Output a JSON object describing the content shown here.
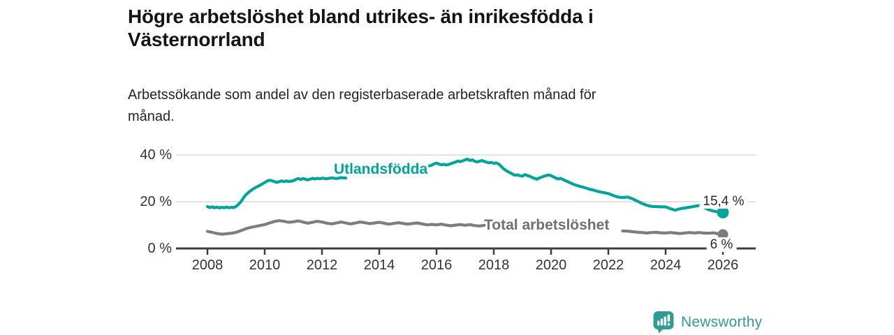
{
  "header": {
    "title": "Högre arbetslöshet bland utrikes- än inrikesfödda i\nVästernorrland",
    "subtitle": "Arbetssökande som andel av den registerbaserade arbetskraften månad för\nmånad."
  },
  "footer": {
    "brand": "Newsworthy",
    "logo_icon": "bar-chart-speech-bubble-icon"
  },
  "colors": {
    "teal_line": "#00a49b",
    "gray_line": "#7c7c81",
    "gray_label": "#6f6f74",
    "axis": "#3d3d3d",
    "gridline": "#d8d8d8",
    "logo_teal": "#2f9c95"
  },
  "chart_data": {
    "type": "line",
    "title": "Högre arbetslöshet bland utrikes- än inrikesfödda i Västernorrland",
    "subtitle": "Arbetssökande som andel av den registerbaserade arbetskraften månad för månad.",
    "unit": "%",
    "grid": "horizontal",
    "legend_position": "inline-labels",
    "xlim": [
      2007.4,
      2027.1
    ],
    "ylim": [
      0,
      44
    ],
    "y_ticks": [
      {
        "value": 0,
        "label": "0 %"
      },
      {
        "value": 20,
        "label": "20 %"
      },
      {
        "value": 40,
        "label": "40 %"
      }
    ],
    "x_ticks": [
      {
        "year": 2008,
        "label": "2008"
      },
      {
        "year": 2010,
        "label": "2010"
      },
      {
        "year": 2012,
        "label": "2012"
      },
      {
        "year": 2014,
        "label": "2014"
      },
      {
        "year": 2016,
        "label": "2016"
      },
      {
        "year": 2018,
        "label": "2018"
      },
      {
        "year": 2020,
        "label": "2020"
      },
      {
        "year": 2022,
        "label": "2022"
      },
      {
        "year": 2024,
        "label": "2024"
      },
      {
        "year": 2026,
        "label": "2026"
      }
    ],
    "series": [
      {
        "name": "Utlandsfödda",
        "color": "#00a49b",
        "end_value": 15.4,
        "end_label": "15,4 %",
        "points": [
          [
            2008.0,
            17.9
          ],
          [
            2008.08,
            17.5
          ],
          [
            2008.17,
            17.8
          ],
          [
            2008.25,
            17.4
          ],
          [
            2008.33,
            17.7
          ],
          [
            2008.42,
            17.3
          ],
          [
            2008.5,
            17.6
          ],
          [
            2008.58,
            17.4
          ],
          [
            2008.67,
            17.7
          ],
          [
            2008.75,
            17.4
          ],
          [
            2008.83,
            17.6
          ],
          [
            2008.92,
            17.5
          ],
          [
            2009.0,
            18.0
          ],
          [
            2009.08,
            18.8
          ],
          [
            2009.17,
            20.0
          ],
          [
            2009.25,
            21.5
          ],
          [
            2009.33,
            22.8
          ],
          [
            2009.42,
            23.8
          ],
          [
            2009.5,
            24.6
          ],
          [
            2009.58,
            25.3
          ],
          [
            2009.67,
            26.0
          ],
          [
            2009.75,
            26.5
          ],
          [
            2009.83,
            27.0
          ],
          [
            2009.92,
            27.6
          ],
          [
            2010.0,
            28.2
          ],
          [
            2010.08,
            28.8
          ],
          [
            2010.17,
            29.2
          ],
          [
            2010.25,
            29.0
          ],
          [
            2010.33,
            28.6
          ],
          [
            2010.42,
            28.3
          ],
          [
            2010.5,
            28.5
          ],
          [
            2010.58,
            28.9
          ],
          [
            2010.67,
            28.6
          ],
          [
            2010.75,
            28.9
          ],
          [
            2010.83,
            28.6
          ],
          [
            2010.92,
            28.8
          ],
          [
            2011.0,
            29.0
          ],
          [
            2011.08,
            29.5
          ],
          [
            2011.17,
            29.9
          ],
          [
            2011.25,
            29.5
          ],
          [
            2011.33,
            29.9
          ],
          [
            2011.42,
            29.6
          ],
          [
            2011.5,
            29.3
          ],
          [
            2011.58,
            29.6
          ],
          [
            2011.67,
            30.0
          ],
          [
            2011.75,
            29.7
          ],
          [
            2011.83,
            30.0
          ],
          [
            2011.92,
            29.8
          ],
          [
            2012.0,
            30.1
          ],
          [
            2012.17,
            29.8
          ],
          [
            2012.33,
            30.2
          ],
          [
            2012.5,
            29.9
          ],
          [
            2012.67,
            30.3
          ],
          [
            2012.83,
            30.1
          ],
          [
            2013.0,
            30.5
          ],
          [
            2013.25,
            30.8
          ],
          [
            2013.5,
            31.2
          ],
          [
            2013.75,
            31.7
          ],
          [
            2014.0,
            32.2
          ],
          [
            2014.25,
            32.6
          ],
          [
            2014.5,
            33.1
          ],
          [
            2014.75,
            33.6
          ],
          [
            2015.0,
            34.1
          ],
          [
            2015.25,
            34.5
          ],
          [
            2015.5,
            34.9
          ],
          [
            2015.75,
            35.3
          ],
          [
            2015.83,
            35.6
          ],
          [
            2015.92,
            36.2
          ],
          [
            2016.0,
            36.5
          ],
          [
            2016.08,
            36.1
          ],
          [
            2016.17,
            35.8
          ],
          [
            2016.25,
            36.0
          ],
          [
            2016.33,
            35.7
          ],
          [
            2016.42,
            35.9
          ],
          [
            2016.5,
            36.3
          ],
          [
            2016.58,
            36.6
          ],
          [
            2016.67,
            37.0
          ],
          [
            2016.75,
            37.4
          ],
          [
            2016.83,
            37.1
          ],
          [
            2016.92,
            37.5
          ],
          [
            2017.0,
            37.9
          ],
          [
            2017.08,
            38.2
          ],
          [
            2017.17,
            37.6
          ],
          [
            2017.25,
            37.9
          ],
          [
            2017.33,
            37.3
          ],
          [
            2017.42,
            37.0
          ],
          [
            2017.5,
            37.3
          ],
          [
            2017.58,
            37.6
          ],
          [
            2017.67,
            37.2
          ],
          [
            2017.75,
            36.9
          ],
          [
            2017.83,
            36.6
          ],
          [
            2017.92,
            36.8
          ],
          [
            2018.0,
            36.4
          ],
          [
            2018.08,
            36.6
          ],
          [
            2018.17,
            36.1
          ],
          [
            2018.25,
            35.2
          ],
          [
            2018.33,
            34.2
          ],
          [
            2018.42,
            33.4
          ],
          [
            2018.5,
            32.8
          ],
          [
            2018.58,
            32.3
          ],
          [
            2018.67,
            31.7
          ],
          [
            2018.75,
            31.3
          ],
          [
            2018.83,
            31.5
          ],
          [
            2018.92,
            31.1
          ],
          [
            2019.0,
            30.9
          ],
          [
            2019.08,
            31.6
          ],
          [
            2019.17,
            31.2
          ],
          [
            2019.25,
            30.9
          ],
          [
            2019.33,
            30.4
          ],
          [
            2019.42,
            30.0
          ],
          [
            2019.5,
            29.6
          ],
          [
            2019.58,
            30.1
          ],
          [
            2019.67,
            30.5
          ],
          [
            2019.75,
            30.9
          ],
          [
            2019.83,
            31.2
          ],
          [
            2019.92,
            31.4
          ],
          [
            2020.0,
            31.2
          ],
          [
            2020.08,
            30.6
          ],
          [
            2020.17,
            30.1
          ],
          [
            2020.25,
            29.7
          ],
          [
            2020.33,
            30.0
          ],
          [
            2020.42,
            29.5
          ],
          [
            2020.5,
            29.0
          ],
          [
            2020.58,
            28.6
          ],
          [
            2020.67,
            28.1
          ],
          [
            2020.75,
            27.6
          ],
          [
            2020.83,
            27.2
          ],
          [
            2020.92,
            26.9
          ],
          [
            2021.0,
            26.6
          ],
          [
            2021.17,
            26.0
          ],
          [
            2021.33,
            25.4
          ],
          [
            2021.5,
            24.9
          ],
          [
            2021.67,
            24.3
          ],
          [
            2021.83,
            23.9
          ],
          [
            2022.0,
            23.5
          ],
          [
            2022.17,
            22.7
          ],
          [
            2022.33,
            22.0
          ],
          [
            2022.5,
            21.8
          ],
          [
            2022.67,
            22.0
          ],
          [
            2022.83,
            21.3
          ],
          [
            2023.0,
            20.3
          ],
          [
            2023.17,
            19.3
          ],
          [
            2023.33,
            18.5
          ],
          [
            2023.5,
            18.0
          ],
          [
            2023.67,
            17.9
          ],
          [
            2023.83,
            17.8
          ],
          [
            2024.0,
            17.8
          ],
          [
            2024.17,
            17.0
          ],
          [
            2024.33,
            16.4
          ],
          [
            2024.5,
            17.0
          ],
          [
            2024.67,
            17.3
          ],
          [
            2024.83,
            17.6
          ],
          [
            2025.0,
            18.0
          ],
          [
            2025.17,
            18.4
          ],
          [
            2025.33,
            17.6
          ],
          [
            2025.5,
            16.6
          ],
          [
            2025.67,
            16.0
          ],
          [
            2025.83,
            15.6
          ],
          [
            2026.0,
            15.4
          ]
        ]
      },
      {
        "name": "Total arbetslöshet",
        "color": "#7c7c81",
        "end_value": 6,
        "end_label": "6 %",
        "points": [
          [
            2008.0,
            7.3
          ],
          [
            2008.17,
            6.9
          ],
          [
            2008.33,
            6.4
          ],
          [
            2008.5,
            6.1
          ],
          [
            2008.67,
            6.3
          ],
          [
            2008.83,
            6.5
          ],
          [
            2009.0,
            6.9
          ],
          [
            2009.17,
            7.6
          ],
          [
            2009.33,
            8.4
          ],
          [
            2009.5,
            9.0
          ],
          [
            2009.67,
            9.4
          ],
          [
            2009.83,
            9.8
          ],
          [
            2010.0,
            10.2
          ],
          [
            2010.17,
            10.9
          ],
          [
            2010.33,
            11.5
          ],
          [
            2010.5,
            11.9
          ],
          [
            2010.67,
            11.6
          ],
          [
            2010.83,
            11.2
          ],
          [
            2011.0,
            11.4
          ],
          [
            2011.17,
            11.8
          ],
          [
            2011.33,
            11.3
          ],
          [
            2011.5,
            10.8
          ],
          [
            2011.67,
            11.2
          ],
          [
            2011.83,
            11.6
          ],
          [
            2012.0,
            11.3
          ],
          [
            2012.17,
            10.8
          ],
          [
            2012.33,
            10.5
          ],
          [
            2012.5,
            10.9
          ],
          [
            2012.67,
            11.3
          ],
          [
            2012.83,
            10.9
          ],
          [
            2013.0,
            10.5
          ],
          [
            2013.17,
            10.9
          ],
          [
            2013.33,
            11.3
          ],
          [
            2013.5,
            11.0
          ],
          [
            2013.67,
            10.6
          ],
          [
            2013.83,
            10.9
          ],
          [
            2014.0,
            11.2
          ],
          [
            2014.17,
            10.8
          ],
          [
            2014.33,
            10.4
          ],
          [
            2014.5,
            10.7
          ],
          [
            2014.67,
            11.0
          ],
          [
            2014.83,
            10.7
          ],
          [
            2015.0,
            10.4
          ],
          [
            2015.17,
            10.7
          ],
          [
            2015.33,
            10.9
          ],
          [
            2015.5,
            10.5
          ],
          [
            2015.67,
            10.1
          ],
          [
            2015.83,
            10.3
          ],
          [
            2016.0,
            10.1
          ],
          [
            2016.17,
            10.4
          ],
          [
            2016.33,
            10.0
          ],
          [
            2016.5,
            9.7
          ],
          [
            2016.67,
            10.0
          ],
          [
            2016.83,
            10.2
          ],
          [
            2017.0,
            9.9
          ],
          [
            2017.17,
            10.2
          ],
          [
            2017.33,
            9.8
          ],
          [
            2017.5,
            9.6
          ],
          [
            2017.67,
            9.9
          ],
          [
            2017.83,
            10.1
          ],
          [
            2018.0,
            9.8
          ],
          [
            2018.17,
            10.0
          ],
          [
            2018.33,
            9.7
          ],
          [
            2018.5,
            9.5
          ],
          [
            2018.67,
            9.7
          ],
          [
            2019.0,
            9.4
          ],
          [
            2019.5,
            9.2
          ],
          [
            2020.0,
            9.8
          ],
          [
            2020.5,
            9.5
          ],
          [
            2021.0,
            8.8
          ],
          [
            2021.5,
            8.2
          ],
          [
            2022.0,
            7.8
          ],
          [
            2022.33,
            7.6
          ],
          [
            2022.5,
            7.5
          ],
          [
            2022.67,
            7.4
          ],
          [
            2022.83,
            7.2
          ],
          [
            2023.0,
            7.0
          ],
          [
            2023.17,
            6.8
          ],
          [
            2023.33,
            6.6
          ],
          [
            2023.5,
            6.8
          ],
          [
            2023.67,
            6.9
          ],
          [
            2023.83,
            6.7
          ],
          [
            2024.0,
            6.6
          ],
          [
            2024.17,
            6.8
          ],
          [
            2024.33,
            6.6
          ],
          [
            2024.5,
            6.4
          ],
          [
            2024.67,
            6.6
          ],
          [
            2024.83,
            6.8
          ],
          [
            2025.0,
            6.6
          ],
          [
            2025.17,
            6.8
          ],
          [
            2025.33,
            6.6
          ],
          [
            2025.5,
            6.5
          ],
          [
            2025.67,
            6.7
          ],
          [
            2025.83,
            6.3
          ],
          [
            2026.0,
            6.0
          ]
        ]
      }
    ]
  }
}
